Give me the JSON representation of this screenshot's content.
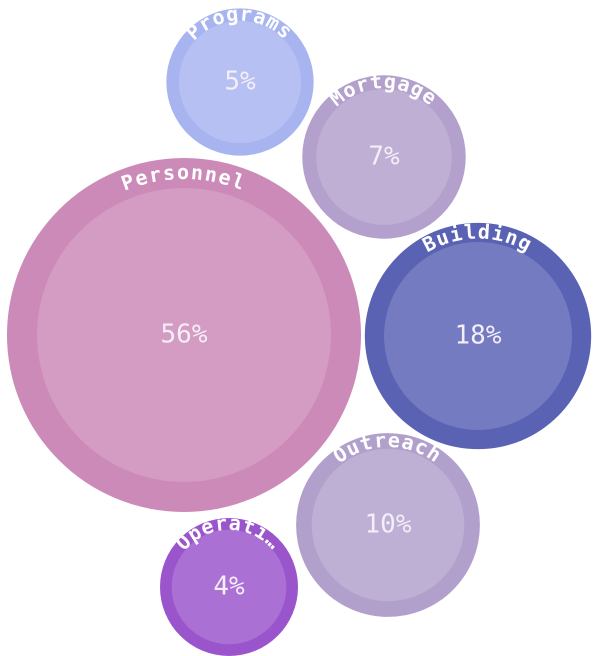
{
  "chart_data": {
    "type": "bubble",
    "categories": [
      "Personnel",
      "Building",
      "Outreach",
      "Mortgage",
      "Programs",
      "Operati…"
    ],
    "values": [
      56,
      18,
      10,
      7,
      5,
      4
    ],
    "value_labels": [
      "56%",
      "18%",
      "10%",
      "7%",
      "5%",
      "4%"
    ],
    "colors": [
      "#cc8ab8",
      "#5a62b4",
      "#b2a0cc",
      "#b3a0cc",
      "#a8b4f0",
      "#9b55cc"
    ]
  }
}
